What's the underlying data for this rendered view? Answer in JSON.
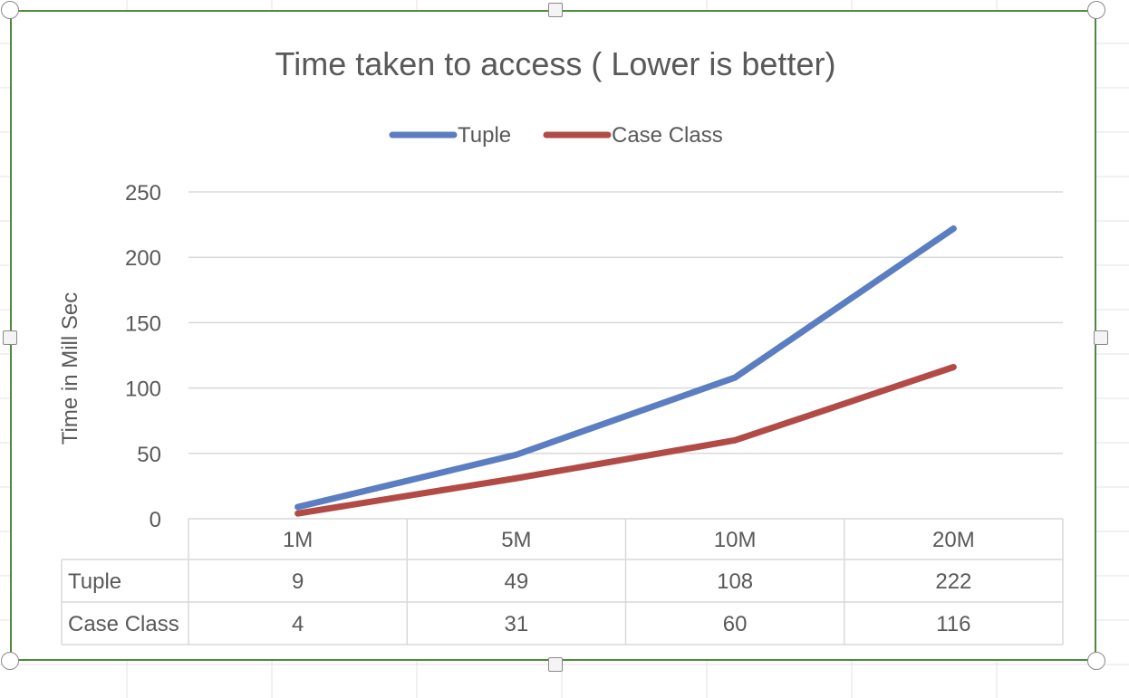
{
  "chart_data": {
    "type": "line",
    "title": "Time taken to access ( Lower is better)",
    "xlabel": "",
    "ylabel": "Time in Mill Sec",
    "categories": [
      "1M",
      "5M",
      "10M",
      "20M"
    ],
    "series": [
      {
        "name": "Tuple",
        "values": [
          9,
          49,
          108,
          222
        ],
        "color": "#5b7dc1"
      },
      {
        "name": "Case Class",
        "values": [
          4,
          31,
          60,
          116
        ],
        "color": "#b24a45"
      }
    ],
    "ylim": [
      0,
      250
    ],
    "yticks": [
      0,
      50,
      100,
      150,
      200,
      250
    ],
    "grid": true,
    "legend": "top",
    "data_table": true
  },
  "colors": {
    "frame_border": "#4f8a3c",
    "gridline": "#d9d9d9",
    "text": "#595959",
    "sheet_grid": "#e3e3e3"
  }
}
